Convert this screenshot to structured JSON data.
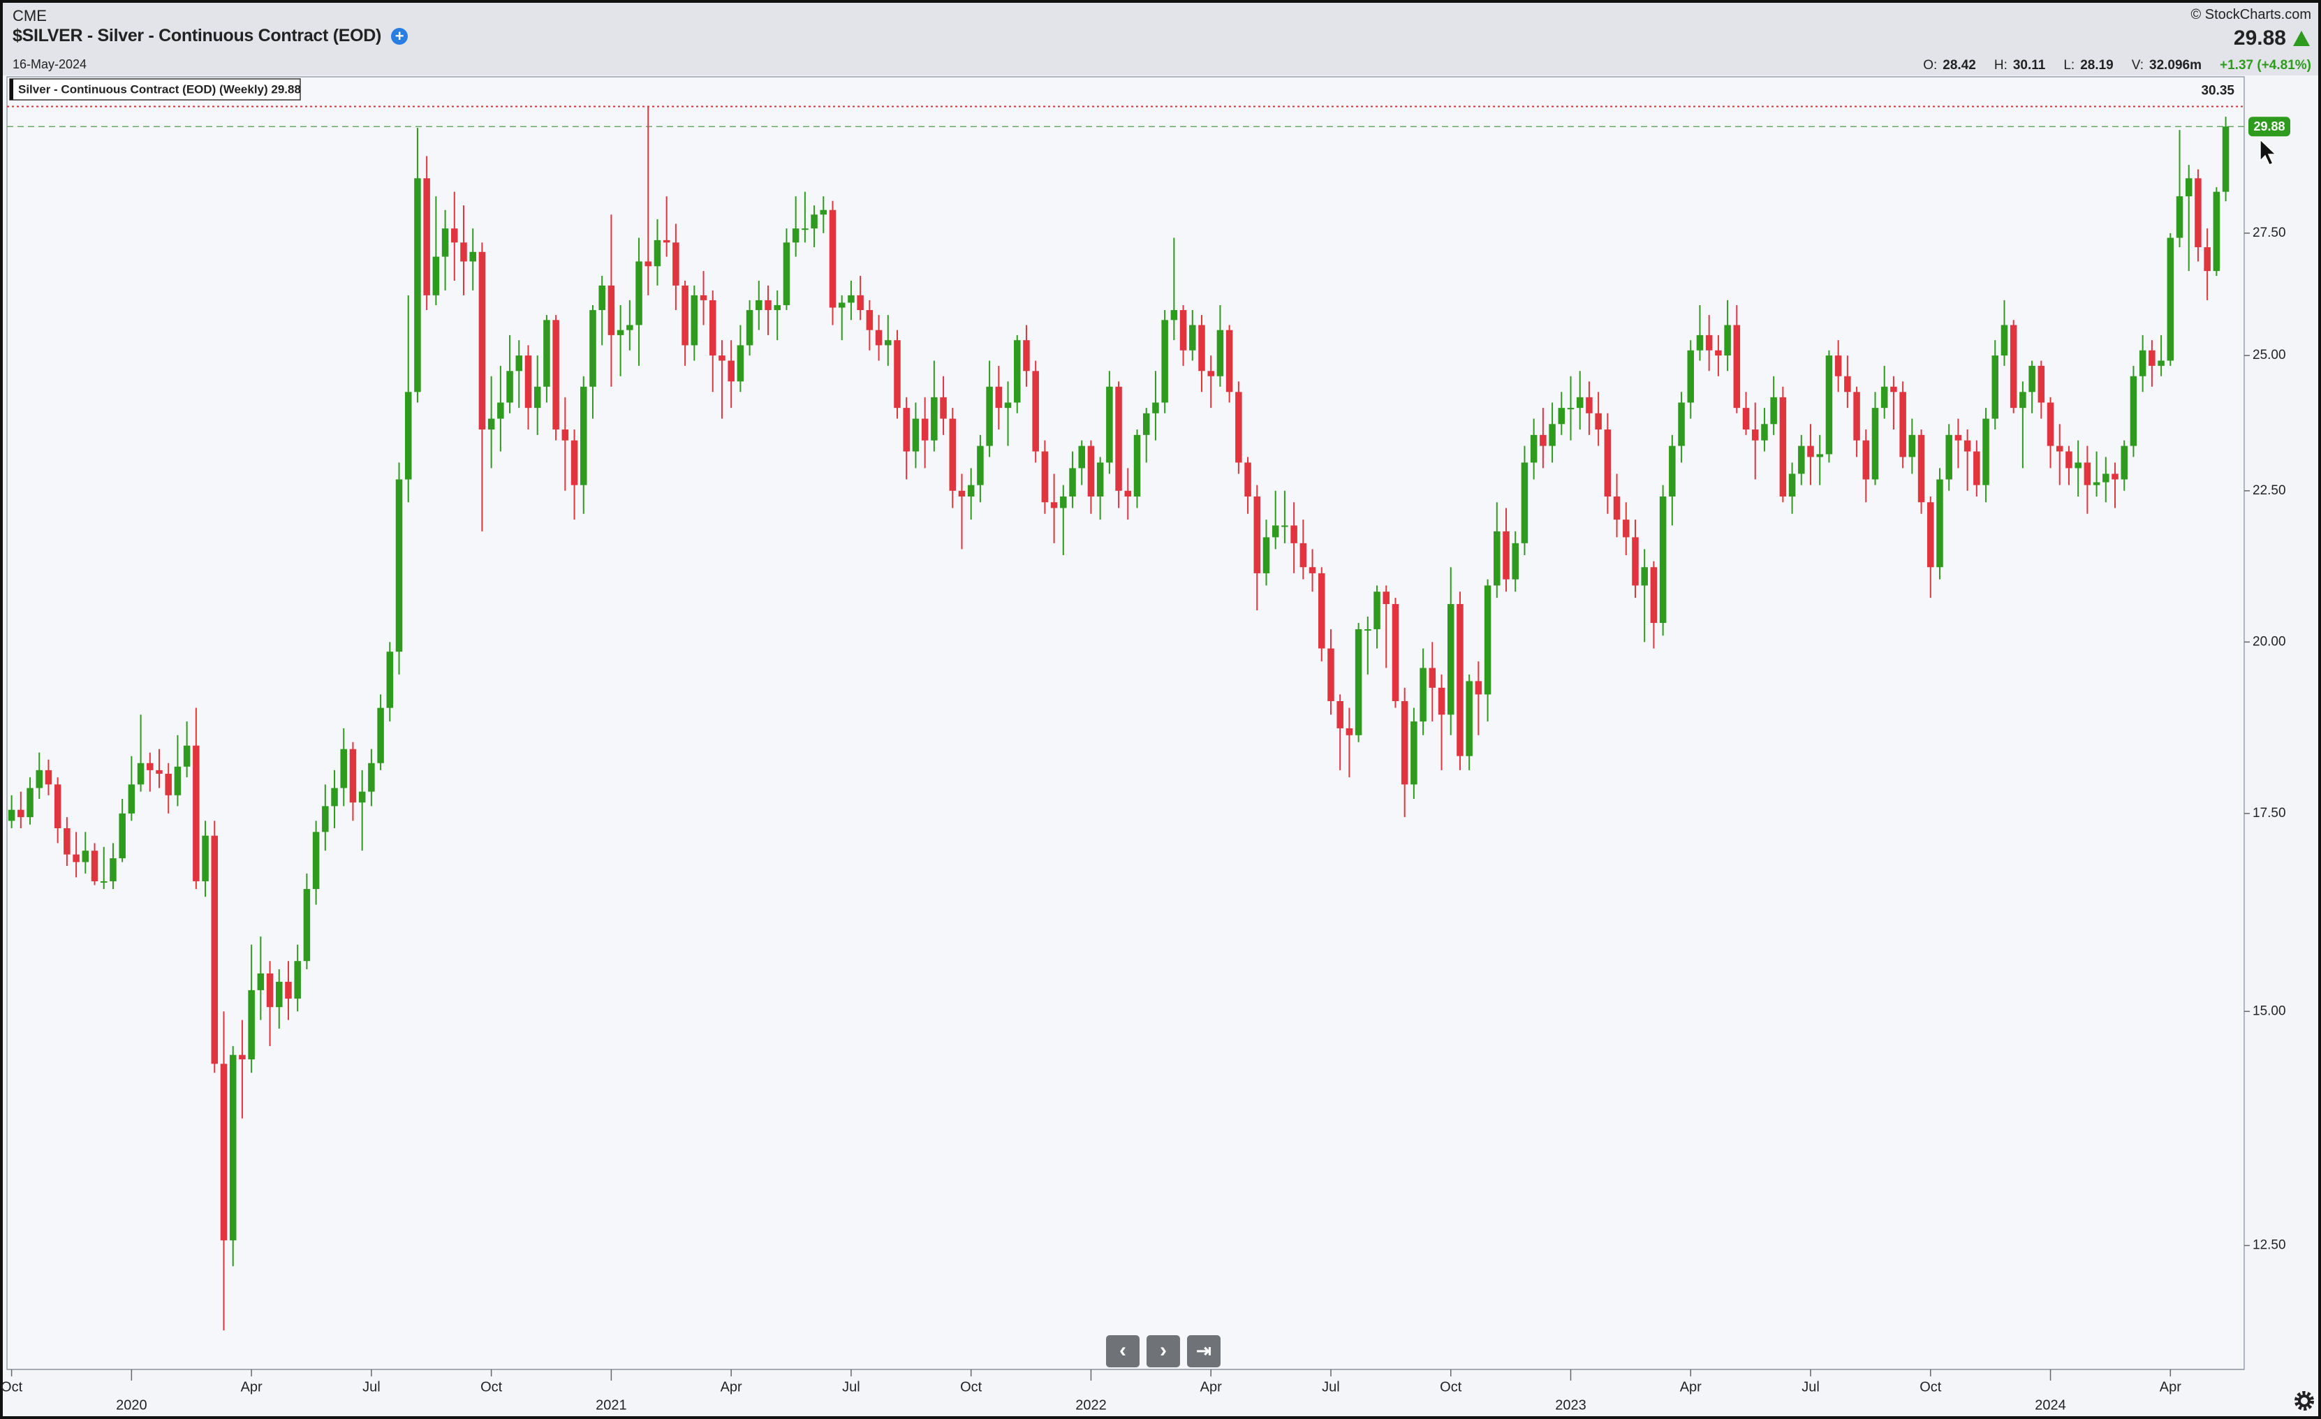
{
  "chart_data": {
    "type": "candlestick",
    "exchange": "CME",
    "title": "$SILVER - Silver - Continuous Contract (EOD)",
    "date": "16-May-2024",
    "source": "© StockCharts.com",
    "last": 29.88,
    "quote": [
      {
        "label": "O:",
        "value": 28.42
      },
      {
        "label": "H:",
        "value": 30.11
      },
      {
        "label": "L:",
        "value": 28.19
      },
      {
        "label": "V:",
        "value": "32.096m"
      }
    ],
    "change": "+1.37 (+4.81%)",
    "legend": "Silver - Continuous Contract (EOD) (Weekly) 29.88",
    "max_line": 30.35,
    "up_color": "#2e9b1e",
    "down_color": "#e0353f",
    "log_scale": true,
    "grid": false,
    "ylim": [
      11.35,
      31.06
    ],
    "yticks": [
      {
        "value": 12.5,
        "label": "12.50"
      },
      {
        "value": 15,
        "label": "15.00"
      },
      {
        "value": 17.5,
        "label": "17.50"
      },
      {
        "value": 20,
        "label": "20.00"
      },
      {
        "value": 22.5,
        "label": "22.50"
      },
      {
        "value": 25,
        "label": "25.00"
      },
      {
        "value": 27.5,
        "label": "27.50"
      }
    ],
    "xticks": [
      {
        "value": 0,
        "label": "Oct"
      },
      {
        "value": 26,
        "label": "Apr"
      },
      {
        "value": 39,
        "label": "Jul"
      },
      {
        "value": 52,
        "label": "Oct"
      },
      {
        "value": 78,
        "label": "Apr"
      },
      {
        "value": 91,
        "label": "Jul"
      },
      {
        "value": 104,
        "label": "Oct"
      },
      {
        "value": 130,
        "label": "Apr"
      },
      {
        "value": 143,
        "label": "Jul"
      },
      {
        "value": 156,
        "label": "Oct"
      },
      {
        "value": 182,
        "label": "Apr"
      },
      {
        "value": 195,
        "label": "Jul"
      },
      {
        "value": 208,
        "label": "Oct"
      },
      {
        "value": 234,
        "label": "Apr"
      }
    ],
    "year_ticks": [
      {
        "value": 13,
        "label": "2020"
      },
      {
        "value": 65,
        "label": "2021"
      },
      {
        "value": 117,
        "label": "2022"
      },
      {
        "value": 169,
        "label": "2023"
      },
      {
        "value": 221,
        "label": "2024"
      }
    ],
    "candles": [
      [
        17.4,
        17.75,
        17.3,
        17.55
      ],
      [
        17.55,
        17.8,
        17.3,
        17.45
      ],
      [
        17.45,
        18.0,
        17.35,
        17.85
      ],
      [
        17.85,
        18.35,
        17.7,
        18.1
      ],
      [
        18.1,
        18.25,
        17.75,
        17.9
      ],
      [
        17.9,
        18.0,
        17.1,
        17.3
      ],
      [
        17.3,
        17.45,
        16.8,
        16.95
      ],
      [
        16.95,
        17.25,
        16.65,
        16.85
      ],
      [
        16.85,
        17.25,
        16.7,
        17.0
      ],
      [
        17.0,
        17.1,
        16.55,
        16.6
      ],
      [
        16.6,
        17.05,
        16.5,
        16.6
      ],
      [
        16.6,
        17.1,
        16.5,
        16.9
      ],
      [
        16.9,
        17.7,
        16.85,
        17.5
      ],
      [
        17.5,
        18.3,
        17.4,
        17.9
      ],
      [
        17.9,
        18.9,
        17.8,
        18.2
      ],
      [
        18.2,
        18.35,
        17.8,
        18.1
      ],
      [
        18.1,
        18.4,
        17.85,
        18.05
      ],
      [
        18.05,
        18.2,
        17.5,
        17.75
      ],
      [
        17.75,
        18.6,
        17.6,
        18.15
      ],
      [
        18.15,
        18.8,
        18.0,
        18.45
      ],
      [
        18.45,
        19.0,
        16.5,
        16.6
      ],
      [
        16.6,
        17.4,
        16.4,
        17.2
      ],
      [
        17.2,
        17.4,
        14.3,
        14.4
      ],
      [
        14.4,
        15.0,
        11.7,
        12.55
      ],
      [
        12.55,
        14.6,
        12.3,
        14.5
      ],
      [
        14.5,
        14.9,
        13.8,
        14.45
      ],
      [
        14.45,
        15.8,
        14.3,
        15.25
      ],
      [
        15.25,
        15.9,
        14.9,
        15.45
      ],
      [
        15.45,
        15.6,
        14.6,
        15.05
      ],
      [
        15.05,
        15.5,
        14.8,
        15.35
      ],
      [
        15.35,
        15.6,
        14.9,
        15.15
      ],
      [
        15.15,
        15.8,
        15.0,
        15.6
      ],
      [
        15.6,
        16.7,
        15.5,
        16.5
      ],
      [
        16.5,
        17.4,
        16.3,
        17.25
      ],
      [
        17.25,
        17.9,
        17.0,
        17.6
      ],
      [
        17.6,
        18.1,
        17.3,
        17.85
      ],
      [
        17.85,
        18.7,
        17.6,
        18.4
      ],
      [
        18.4,
        18.5,
        17.4,
        17.65
      ],
      [
        17.65,
        18.1,
        17.0,
        17.8
      ],
      [
        17.8,
        18.4,
        17.6,
        18.2
      ],
      [
        18.2,
        19.2,
        18.1,
        19.0
      ],
      [
        19.0,
        20.0,
        18.8,
        19.85
      ],
      [
        19.85,
        23.0,
        19.5,
        22.7
      ],
      [
        22.7,
        26.2,
        22.3,
        24.3
      ],
      [
        24.3,
        29.85,
        24.1,
        28.7
      ],
      [
        28.7,
        29.2,
        25.9,
        26.2
      ],
      [
        26.2,
        28.3,
        26.0,
        27.0
      ],
      [
        27.0,
        28.0,
        26.3,
        27.6
      ],
      [
        27.6,
        28.4,
        26.5,
        27.3
      ],
      [
        27.3,
        28.1,
        26.2,
        26.9
      ],
      [
        26.9,
        27.6,
        26.3,
        27.1
      ],
      [
        27.1,
        27.3,
        21.8,
        23.6
      ],
      [
        23.6,
        24.6,
        22.9,
        23.8
      ],
      [
        23.8,
        24.8,
        23.2,
        24.1
      ],
      [
        24.1,
        25.4,
        23.9,
        24.7
      ],
      [
        24.7,
        25.3,
        24.0,
        25.0
      ],
      [
        25.0,
        25.2,
        23.6,
        24.0
      ],
      [
        24.0,
        25.0,
        23.5,
        24.4
      ],
      [
        24.4,
        25.8,
        24.1,
        25.7
      ],
      [
        25.7,
        25.8,
        23.4,
        23.6
      ],
      [
        23.6,
        24.2,
        22.5,
        23.4
      ],
      [
        23.4,
        23.6,
        22.0,
        22.6
      ],
      [
        22.6,
        24.6,
        22.1,
        24.4
      ],
      [
        24.4,
        26.0,
        23.8,
        25.9
      ],
      [
        25.9,
        26.6,
        25.2,
        26.4
      ],
      [
        26.4,
        27.9,
        24.4,
        25.4
      ],
      [
        25.4,
        26.0,
        24.6,
        25.5
      ],
      [
        25.5,
        26.1,
        25.1,
        25.6
      ],
      [
        25.6,
        27.4,
        24.8,
        26.9
      ],
      [
        26.9,
        30.35,
        26.2,
        26.8
      ],
      [
        26.8,
        27.8,
        26.4,
        27.35
      ],
      [
        27.35,
        28.3,
        27.0,
        27.3
      ],
      [
        27.3,
        27.7,
        25.9,
        26.4
      ],
      [
        26.4,
        26.5,
        24.8,
        25.2
      ],
      [
        25.2,
        26.4,
        24.9,
        26.2
      ],
      [
        26.2,
        26.7,
        25.6,
        26.1
      ],
      [
        26.1,
        26.3,
        24.3,
        25.0
      ],
      [
        25.0,
        25.3,
        23.8,
        24.9
      ],
      [
        24.9,
        25.3,
        24.0,
        24.5
      ],
      [
        24.5,
        25.6,
        24.3,
        25.2
      ],
      [
        25.2,
        26.1,
        25.0,
        25.9
      ],
      [
        25.9,
        26.5,
        25.5,
        26.1
      ],
      [
        26.1,
        26.4,
        25.4,
        25.9
      ],
      [
        25.9,
        26.3,
        25.3,
        26.0
      ],
      [
        26.0,
        27.6,
        25.9,
        27.3
      ],
      [
        27.3,
        28.3,
        27.0,
        27.6
      ],
      [
        27.6,
        28.4,
        27.3,
        27.6
      ],
      [
        27.6,
        28.1,
        27.2,
        27.9
      ],
      [
        27.9,
        28.3,
        27.5,
        28.0
      ],
      [
        28.0,
        28.2,
        25.6,
        25.95
      ],
      [
        25.95,
        26.2,
        25.3,
        26.05
      ],
      [
        26.05,
        26.5,
        25.7,
        26.2
      ],
      [
        26.2,
        26.6,
        25.7,
        25.9
      ],
      [
        25.9,
        26.1,
        25.1,
        25.5
      ],
      [
        25.5,
        25.8,
        24.9,
        25.2
      ],
      [
        25.2,
        25.8,
        24.8,
        25.3
      ],
      [
        25.3,
        25.5,
        23.8,
        24.0
      ],
      [
        24.0,
        24.2,
        22.7,
        23.2
      ],
      [
        23.2,
        24.1,
        22.9,
        23.8
      ],
      [
        23.8,
        24.2,
        22.9,
        23.4
      ],
      [
        23.4,
        24.9,
        23.2,
        24.2
      ],
      [
        24.2,
        24.6,
        23.5,
        23.8
      ],
      [
        23.8,
        24.0,
        22.2,
        22.5
      ],
      [
        22.5,
        22.8,
        21.5,
        22.4
      ],
      [
        22.4,
        22.9,
        22.0,
        22.6
      ],
      [
        22.6,
        23.5,
        22.3,
        23.3
      ],
      [
        23.3,
        24.9,
        23.1,
        24.4
      ],
      [
        24.4,
        24.8,
        23.6,
        24.0
      ],
      [
        24.0,
        24.5,
        23.3,
        24.1
      ],
      [
        24.1,
        25.4,
        23.9,
        25.3
      ],
      [
        25.3,
        25.6,
        24.4,
        24.7
      ],
      [
        24.7,
        24.9,
        23.0,
        23.2
      ],
      [
        23.2,
        23.4,
        22.1,
        22.3
      ],
      [
        22.3,
        22.8,
        21.6,
        22.2
      ],
      [
        22.2,
        22.6,
        21.4,
        22.4
      ],
      [
        22.4,
        23.2,
        22.2,
        22.9
      ],
      [
        22.9,
        23.4,
        22.6,
        23.3
      ],
      [
        23.3,
        23.4,
        22.1,
        22.4
      ],
      [
        22.4,
        23.1,
        22.0,
        23.0
      ],
      [
        23.0,
        24.7,
        22.8,
        24.4
      ],
      [
        24.4,
        24.5,
        22.2,
        22.5
      ],
      [
        22.5,
        22.9,
        22.0,
        22.4
      ],
      [
        22.4,
        23.6,
        22.2,
        23.5
      ],
      [
        23.5,
        24.0,
        23.0,
        23.9
      ],
      [
        23.9,
        24.7,
        23.4,
        24.1
      ],
      [
        24.1,
        25.9,
        23.9,
        25.7
      ],
      [
        25.7,
        27.4,
        25.3,
        25.9
      ],
      [
        25.9,
        26.0,
        24.8,
        25.1
      ],
      [
        25.1,
        25.9,
        24.9,
        25.6
      ],
      [
        25.6,
        25.8,
        24.3,
        24.7
      ],
      [
        24.7,
        25.0,
        24.0,
        24.6
      ],
      [
        24.6,
        26.0,
        24.4,
        25.5
      ],
      [
        25.5,
        25.6,
        24.1,
        24.3
      ],
      [
        24.3,
        24.5,
        22.8,
        23.0
      ],
      [
        23.0,
        23.1,
        22.1,
        22.4
      ],
      [
        22.4,
        22.6,
        20.5,
        21.1
      ],
      [
        21.1,
        22.0,
        20.9,
        21.7
      ],
      [
        21.7,
        22.5,
        21.5,
        21.9
      ],
      [
        21.9,
        22.5,
        21.6,
        21.9
      ],
      [
        21.9,
        22.3,
        21.1,
        21.6
      ],
      [
        21.6,
        22.0,
        21.0,
        21.2
      ],
      [
        21.2,
        21.5,
        20.8,
        21.1
      ],
      [
        21.1,
        21.2,
        19.7,
        19.9
      ],
      [
        19.9,
        20.2,
        18.9,
        19.1
      ],
      [
        19.1,
        19.2,
        18.1,
        18.7
      ],
      [
        18.7,
        19.0,
        18.0,
        18.6
      ],
      [
        18.6,
        20.3,
        18.5,
        20.2
      ],
      [
        20.2,
        20.4,
        19.5,
        20.2
      ],
      [
        20.2,
        20.9,
        19.9,
        20.8
      ],
      [
        20.8,
        20.9,
        19.6,
        20.6
      ],
      [
        20.6,
        20.7,
        19.0,
        19.1
      ],
      [
        19.1,
        19.3,
        17.45,
        17.9
      ],
      [
        17.9,
        19.0,
        17.7,
        18.8
      ],
      [
        18.8,
        19.9,
        18.6,
        19.6
      ],
      [
        19.6,
        20.0,
        18.8,
        19.3
      ],
      [
        19.3,
        19.5,
        18.1,
        18.9
      ],
      [
        18.9,
        21.2,
        18.6,
        20.6
      ],
      [
        20.6,
        20.8,
        18.1,
        18.3
      ],
      [
        18.3,
        19.5,
        18.1,
        19.4
      ],
      [
        19.4,
        19.7,
        18.6,
        19.2
      ],
      [
        19.2,
        21.0,
        18.8,
        20.9
      ],
      [
        20.9,
        22.3,
        20.7,
        21.8
      ],
      [
        21.8,
        22.2,
        20.8,
        21.0
      ],
      [
        21.0,
        21.8,
        20.8,
        21.6
      ],
      [
        21.6,
        23.3,
        21.4,
        23.0
      ],
      [
        23.0,
        23.8,
        22.7,
        23.5
      ],
      [
        23.5,
        24.0,
        22.9,
        23.3
      ],
      [
        23.3,
        24.1,
        23.0,
        23.7
      ],
      [
        23.7,
        24.3,
        23.5,
        24.0
      ],
      [
        24.0,
        24.6,
        23.4,
        24.0
      ],
      [
        24.0,
        24.7,
        23.6,
        24.2
      ],
      [
        24.2,
        24.5,
        23.5,
        23.9
      ],
      [
        23.9,
        24.3,
        23.3,
        23.6
      ],
      [
        23.6,
        23.9,
        22.1,
        22.4
      ],
      [
        22.4,
        22.8,
        21.7,
        22.0
      ],
      [
        22.0,
        22.3,
        21.4,
        21.7
      ],
      [
        21.7,
        22.0,
        20.7,
        20.9
      ],
      [
        20.9,
        21.5,
        20.0,
        21.2
      ],
      [
        21.2,
        21.3,
        19.9,
        20.3
      ],
      [
        20.3,
        22.6,
        20.1,
        22.4
      ],
      [
        22.4,
        23.5,
        21.9,
        23.3
      ],
      [
        23.3,
        24.3,
        23.0,
        24.1
      ],
      [
        24.1,
        25.3,
        23.8,
        25.1
      ],
      [
        25.1,
        26.0,
        24.9,
        25.4
      ],
      [
        25.4,
        25.8,
        24.7,
        25.1
      ],
      [
        25.1,
        25.4,
        24.6,
        25.0
      ],
      [
        25.0,
        26.1,
        24.7,
        25.6
      ],
      [
        25.6,
        26.0,
        23.9,
        24.0
      ],
      [
        24.0,
        24.3,
        23.5,
        23.6
      ],
      [
        23.6,
        24.1,
        22.7,
        23.4
      ],
      [
        23.4,
        24.0,
        23.2,
        23.7
      ],
      [
        23.7,
        24.6,
        23.5,
        24.2
      ],
      [
        24.2,
        24.4,
        22.3,
        22.4
      ],
      [
        22.4,
        23.0,
        22.1,
        22.8
      ],
      [
        22.8,
        23.5,
        22.6,
        23.3
      ],
      [
        23.3,
        23.7,
        22.6,
        23.1
      ],
      [
        23.1,
        23.5,
        22.6,
        23.15
      ],
      [
        23.15,
        25.1,
        23.0,
        25.0
      ],
      [
        25.0,
        25.3,
        24.3,
        24.6
      ],
      [
        24.6,
        25.0,
        24.0,
        24.3
      ],
      [
        24.3,
        24.4,
        23.1,
        23.4
      ],
      [
        23.4,
        23.6,
        22.3,
        22.7
      ],
      [
        22.7,
        24.3,
        22.6,
        24.0
      ],
      [
        24.0,
        24.8,
        23.8,
        24.4
      ],
      [
        24.4,
        24.6,
        23.6,
        24.3
      ],
      [
        24.3,
        24.5,
        22.9,
        23.1
      ],
      [
        23.1,
        23.8,
        22.8,
        23.5
      ],
      [
        23.5,
        23.6,
        22.1,
        22.3
      ],
      [
        22.3,
        22.4,
        20.7,
        21.2
      ],
      [
        21.2,
        22.9,
        21.0,
        22.7
      ],
      [
        22.7,
        23.7,
        22.5,
        23.5
      ],
      [
        23.5,
        23.8,
        22.9,
        23.4
      ],
      [
        23.4,
        23.6,
        22.5,
        23.2
      ],
      [
        23.2,
        23.4,
        22.4,
        22.6
      ],
      [
        22.6,
        24.0,
        22.3,
        23.8
      ],
      [
        23.8,
        25.3,
        23.6,
        25.0
      ],
      [
        25.0,
        26.1,
        24.8,
        25.6
      ],
      [
        25.6,
        25.7,
        23.9,
        24.0
      ],
      [
        24.0,
        24.5,
        22.9,
        24.3
      ],
      [
        24.3,
        24.9,
        23.9,
        24.8
      ],
      [
        24.8,
        24.9,
        23.8,
        24.1
      ],
      [
        24.1,
        24.2,
        22.9,
        23.3
      ],
      [
        23.3,
        23.7,
        22.6,
        23.2
      ],
      [
        23.2,
        23.3,
        22.6,
        22.9
      ],
      [
        22.9,
        23.4,
        22.4,
        23.0
      ],
      [
        23.0,
        23.3,
        22.1,
        22.6
      ],
      [
        22.6,
        23.2,
        22.4,
        22.65
      ],
      [
        22.65,
        23.1,
        22.3,
        22.8
      ],
      [
        22.8,
        23.0,
        22.2,
        22.7
      ],
      [
        22.7,
        23.4,
        22.5,
        23.3
      ],
      [
        23.3,
        24.8,
        23.1,
        24.6
      ],
      [
        24.6,
        25.4,
        24.3,
        25.1
      ],
      [
        25.1,
        25.3,
        24.4,
        24.8
      ],
      [
        24.8,
        25.4,
        24.6,
        24.9
      ],
      [
        24.9,
        27.5,
        24.8,
        27.4
      ],
      [
        27.4,
        29.8,
        27.2,
        28.3
      ],
      [
        28.3,
        29.0,
        26.7,
        28.7
      ],
      [
        28.7,
        28.9,
        26.9,
        27.2
      ],
      [
        27.2,
        27.6,
        26.1,
        26.7
      ],
      [
        26.7,
        28.5,
        26.6,
        28.4
      ],
      [
        28.4,
        30.11,
        28.19,
        29.88
      ]
    ]
  }
}
